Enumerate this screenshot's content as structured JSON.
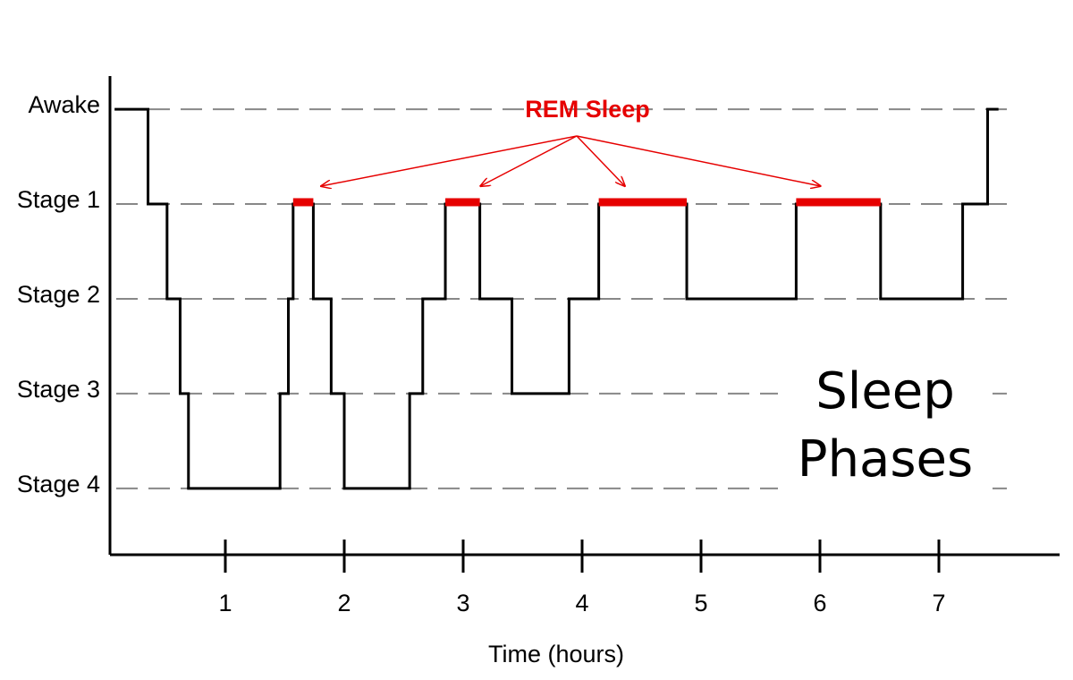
{
  "chart_data": {
    "type": "step",
    "x_label": "Time (hours)",
    "big_label": "Sleep Phases",
    "xlim": [
      0,
      8
    ],
    "xticks": [
      1,
      2,
      3,
      4,
      5,
      6,
      7
    ],
    "ylim": [
      4.7,
      -0.35
    ],
    "yticks": [
      {
        "value": 0,
        "label": "Awake"
      },
      {
        "value": 1,
        "label": "Stage 1"
      },
      {
        "value": 2,
        "label": "Stage 2"
      },
      {
        "value": 3,
        "label": "Stage 3"
      },
      {
        "value": 4,
        "label": "Stage 4"
      }
    ],
    "grid": true,
    "series": [
      {
        "color": "#000000",
        "x": [
          0.08,
          0.35,
          0.51,
          0.62,
          0.69,
          1.46,
          1.53,
          1.57,
          1.74,
          1.89,
          2.0,
          2.55,
          2.66,
          2.85,
          3.14,
          3.41,
          3.89,
          4.14,
          4.88,
          5.8,
          6.51,
          7.2,
          7.41,
          7.49
        ],
        "values": [
          0,
          1,
          2,
          3,
          4,
          3,
          2,
          1,
          2,
          3,
          4,
          3,
          2,
          1,
          2,
          3,
          2,
          1,
          2,
          1,
          2,
          1,
          0,
          0
        ]
      },
      {
        "name": "REM Sleep",
        "color": "#e60000",
        "x": [
          [
            1.57,
            1.74
          ],
          [
            2.85,
            3.14
          ],
          [
            4.14,
            4.88
          ],
          [
            5.8,
            6.51
          ]
        ],
        "values": [
          1,
          1,
          1,
          1
        ]
      }
    ]
  }
}
